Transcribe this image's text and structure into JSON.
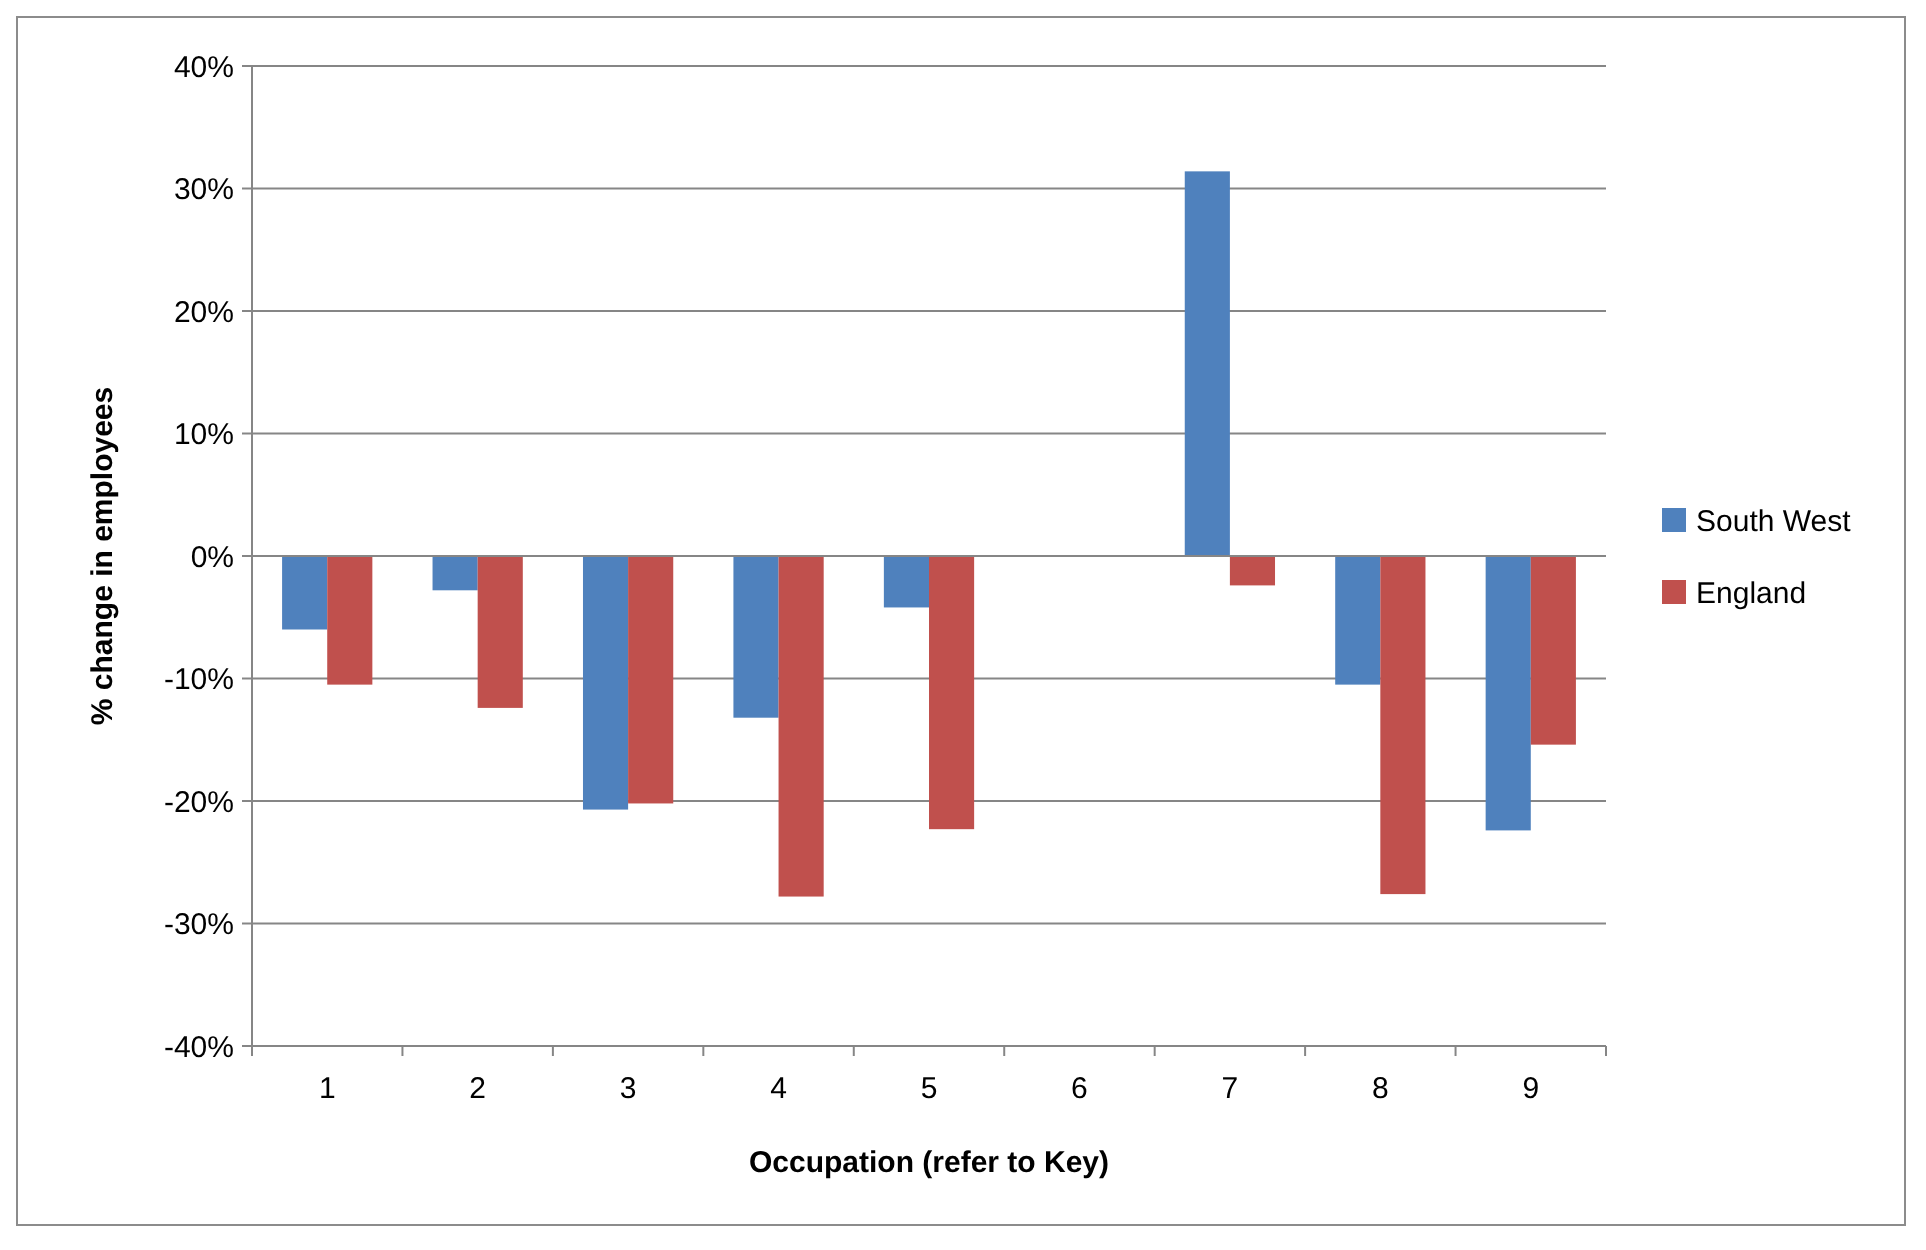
{
  "chart_data": {
    "type": "bar",
    "xlabel": "Occupation (refer to Key)",
    "ylabel": "% change in employees",
    "categories": [
      "1",
      "2",
      "3",
      "4",
      "5",
      "6",
      "7",
      "8",
      "9"
    ],
    "series": [
      {
        "name": "South West",
        "color": "#4f81bd",
        "values": [
          -6.0,
          -2.8,
          -20.7,
          -13.2,
          -4.2,
          null,
          31.4,
          -10.5,
          -22.4
        ]
      },
      {
        "name": "England",
        "color": "#c0504d",
        "values": [
          -10.5,
          -12.4,
          -20.2,
          -27.8,
          -22.3,
          null,
          -2.4,
          -27.6,
          -15.4
        ]
      }
    ],
    "ylim": [
      -40,
      40
    ],
    "yticks": [
      {
        "value": -40,
        "label": "-40%"
      },
      {
        "value": -30,
        "label": "-30%"
      },
      {
        "value": -20,
        "label": "-20%"
      },
      {
        "value": -10,
        "label": "-10%"
      },
      {
        "value": 0,
        "label": "0%"
      },
      {
        "value": 10,
        "label": "10%"
      },
      {
        "value": 20,
        "label": "20%"
      },
      {
        "value": 30,
        "label": "30%"
      },
      {
        "value": 40,
        "label": "40%"
      }
    ],
    "grid": "y",
    "legend": "right"
  }
}
